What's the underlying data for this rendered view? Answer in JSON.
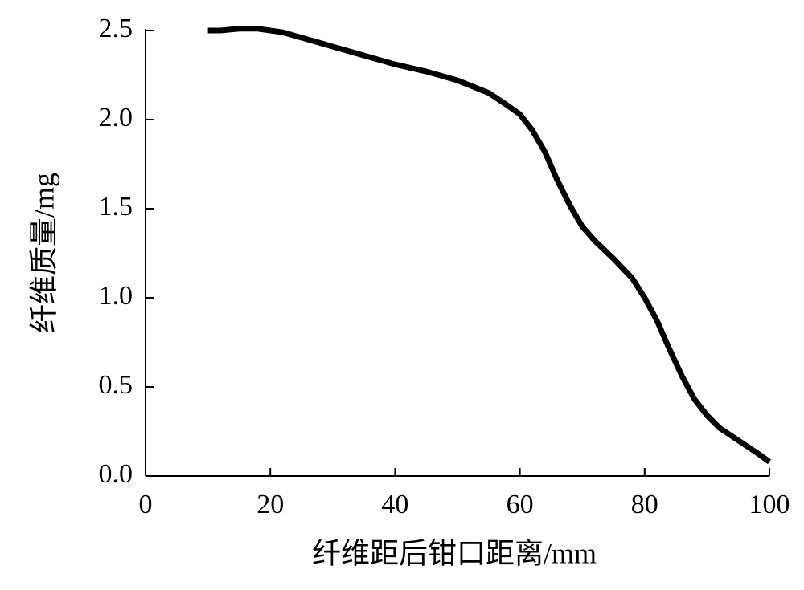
{
  "chart_data": {
    "type": "line",
    "x_label": "纤维距后钳口距离/mm",
    "y_label": "纤维质量/mg",
    "xlim": [
      0,
      100
    ],
    "xticks": [
      0,
      20,
      40,
      60,
      80,
      100
    ],
    "ylim": [
      0,
      2.5
    ],
    "yticks": [
      {
        "value": 0,
        "label": "0.0"
      },
      0.5,
      {
        "value": 1,
        "label": "1.0"
      },
      1.5,
      {
        "value": 2,
        "label": "2.0"
      },
      2.5
    ],
    "series": [
      {
        "color": "#000000",
        "x": [
          10,
          12,
          15,
          18,
          20,
          22,
          25,
          28,
          30,
          35,
          40,
          45,
          50,
          55,
          58,
          60,
          62,
          64,
          66,
          68,
          70,
          72,
          75,
          78,
          80,
          82,
          84,
          86,
          88,
          90,
          92,
          95,
          98,
          100
        ],
        "values": [
          2.5,
          2.5,
          2.51,
          2.51,
          2.5,
          2.49,
          2.46,
          2.43,
          2.41,
          2.36,
          2.31,
          2.27,
          2.22,
          2.15,
          2.08,
          2.03,
          1.94,
          1.82,
          1.66,
          1.52,
          1.4,
          1.32,
          1.22,
          1.11,
          1.0,
          0.87,
          0.71,
          0.56,
          0.43,
          0.34,
          0.27,
          0.2,
          0.13,
          0.08
        ]
      }
    ]
  }
}
